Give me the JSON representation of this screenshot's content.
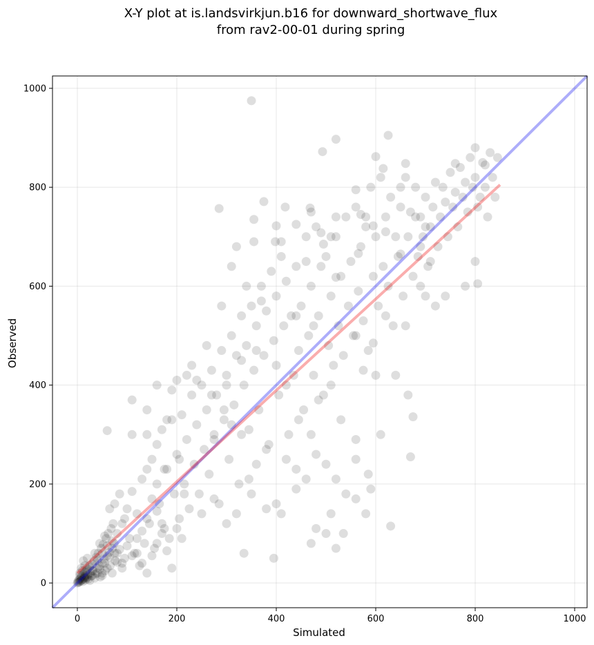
{
  "chart_data": {
    "type": "scatter",
    "title": "X-Y plot at is.landsvirkjun.b16 for downward_shortwave_flux",
    "subtitle": "from rav2-00-01 during spring",
    "xlabel": "Simulated",
    "ylabel": "Observed",
    "xlim": [
      -50,
      1025
    ],
    "ylim": [
      -50,
      1025
    ],
    "xticks": [
      0,
      200,
      400,
      600,
      800,
      1000
    ],
    "yticks": [
      0,
      200,
      400,
      600,
      800,
      1000
    ],
    "grid": true,
    "point_color": "#000000",
    "point_opacity": 0.13,
    "reference_line": {
      "color": "#0000ee",
      "opacity": 0.32,
      "from": [
        -50,
        -50
      ],
      "to": [
        1025,
        1025
      ]
    },
    "regression_line": {
      "color": "#ee0000",
      "opacity": 0.32,
      "from": [
        0,
        20
      ],
      "to": [
        850,
        805
      ]
    },
    "points": [
      [
        0,
        0
      ],
      [
        1,
        3
      ],
      [
        2,
        1
      ],
      [
        3,
        6
      ],
      [
        4,
        2
      ],
      [
        5,
        8
      ],
      [
        6,
        4
      ],
      [
        7,
        11
      ],
      [
        8,
        5
      ],
      [
        9,
        14
      ],
      [
        10,
        7
      ],
      [
        11,
        3
      ],
      [
        12,
        18
      ],
      [
        13,
        9
      ],
      [
        14,
        12
      ],
      [
        15,
        22
      ],
      [
        16,
        6
      ],
      [
        17,
        15
      ],
      [
        18,
        25
      ],
      [
        19,
        10
      ],
      [
        20,
        28
      ],
      [
        21,
        17
      ],
      [
        22,
        8
      ],
      [
        24,
        32
      ],
      [
        26,
        20
      ],
      [
        28,
        14
      ],
      [
        30,
        38
      ],
      [
        32,
        24
      ],
      [
        34,
        45
      ],
      [
        36,
        18
      ],
      [
        38,
        52
      ],
      [
        40,
        30
      ],
      [
        42,
        60
      ],
      [
        44,
        35
      ],
      [
        46,
        12
      ],
      [
        48,
        70
      ],
      [
        50,
        40
      ],
      [
        52,
        78
      ],
      [
        54,
        48
      ],
      [
        56,
        25
      ],
      [
        58,
        90
      ],
      [
        60,
        55
      ],
      [
        62,
        100
      ],
      [
        64,
        62
      ],
      [
        66,
        35
      ],
      [
        68,
        110
      ],
      [
        70,
        70
      ],
      [
        72,
        120
      ],
      [
        74,
        80
      ],
      [
        76,
        45
      ],
      [
        5,
        20
      ],
      [
        8,
        30
      ],
      [
        12,
        45
      ],
      [
        15,
        10
      ],
      [
        20,
        50
      ],
      [
        25,
        35
      ],
      [
        30,
        15
      ],
      [
        35,
        60
      ],
      [
        40,
        20
      ],
      [
        45,
        80
      ],
      [
        50,
        15
      ],
      [
        55,
        95
      ],
      [
        60,
        30
      ],
      [
        65,
        150
      ],
      [
        70,
        20
      ],
      [
        75,
        160
      ],
      [
        80,
        60
      ],
      [
        85,
        180
      ],
      [
        90,
        40
      ],
      [
        95,
        130
      ],
      [
        100,
        150
      ],
      [
        105,
        90
      ],
      [
        110,
        185
      ],
      [
        115,
        60
      ],
      [
        120,
        140
      ],
      [
        125,
        35
      ],
      [
        130,
        210
      ],
      [
        135,
        80
      ],
      [
        140,
        300
      ],
      [
        145,
        120
      ],
      [
        150,
        250
      ],
      [
        155,
        70
      ],
      [
        160,
        280
      ],
      [
        165,
        160
      ],
      [
        170,
        310
      ],
      [
        175,
        110
      ],
      [
        180,
        230
      ],
      [
        185,
        90
      ],
      [
        190,
        330
      ],
      [
        195,
        180
      ],
      [
        200,
        260
      ],
      [
        205,
        130
      ],
      [
        210,
        340
      ],
      [
        215,
        200
      ],
      [
        220,
        290
      ],
      [
        225,
        150
      ],
      [
        230,
        380
      ],
      [
        235,
        240
      ],
      [
        240,
        320
      ],
      [
        245,
        180
      ],
      [
        250,
        400
      ],
      [
        255,
        270
      ],
      [
        260,
        350
      ],
      [
        265,
        220
      ],
      [
        270,
        430
      ],
      [
        275,
        300
      ],
      [
        280,
        380
      ],
      [
        285,
        160
      ],
      [
        290,
        470
      ],
      [
        295,
        330
      ],
      [
        300,
        420
      ],
      [
        305,
        250
      ],
      [
        310,
        500
      ],
      [
        315,
        360
      ],
      [
        320,
        460
      ],
      [
        325,
        200
      ],
      [
        330,
        540
      ],
      [
        335,
        400
      ],
      [
        340,
        480
      ],
      [
        345,
        310
      ],
      [
        350,
        560
      ],
      [
        355,
        430
      ],
      [
        360,
        520
      ],
      [
        365,
        350
      ],
      [
        370,
        600
      ],
      [
        375,
        460
      ],
      [
        380,
        550
      ],
      [
        385,
        280
      ],
      [
        390,
        630
      ],
      [
        395,
        490
      ],
      [
        400,
        580
      ],
      [
        405,
        380
      ],
      [
        410,
        660
      ],
      [
        415,
        520
      ],
      [
        420,
        610
      ],
      [
        425,
        300
      ],
      [
        430,
        540
      ],
      [
        435,
        420
      ],
      [
        440,
        640
      ],
      [
        445,
        470
      ],
      [
        450,
        560
      ],
      [
        455,
        350
      ],
      [
        460,
        700
      ],
      [
        465,
        500
      ],
      [
        470,
        600
      ],
      [
        475,
        420
      ],
      [
        480,
        720
      ],
      [
        485,
        540
      ],
      [
        490,
        640
      ],
      [
        495,
        380
      ],
      [
        500,
        660
      ],
      [
        505,
        480
      ],
      [
        510,
        580
      ],
      [
        515,
        440
      ],
      [
        520,
        700
      ],
      [
        525,
        520
      ],
      [
        530,
        620
      ],
      [
        535,
        460
      ],
      [
        540,
        740
      ],
      [
        545,
        560
      ],
      [
        550,
        650
      ],
      [
        555,
        500
      ],
      [
        560,
        760
      ],
      [
        565,
        590
      ],
      [
        570,
        680
      ],
      [
        575,
        530
      ],
      [
        580,
        720
      ],
      [
        585,
        470
      ],
      [
        590,
        800
      ],
      [
        595,
        620
      ],
      [
        600,
        700
      ],
      [
        605,
        560
      ],
      [
        610,
        820
      ],
      [
        615,
        640
      ],
      [
        620,
        740
      ],
      [
        625,
        600
      ],
      [
        630,
        780
      ],
      [
        635,
        520
      ],
      [
        640,
        700
      ],
      [
        645,
        660
      ],
      [
        650,
        760
      ],
      [
        655,
        580
      ],
      [
        660,
        820
      ],
      [
        665,
        700
      ],
      [
        670,
        750
      ],
      [
        675,
        620
      ],
      [
        680,
        800
      ],
      [
        685,
        660
      ],
      [
        690,
        740
      ],
      [
        695,
        700
      ],
      [
        700,
        780
      ],
      [
        705,
        640
      ],
      [
        710,
        720
      ],
      [
        715,
        760
      ],
      [
        720,
        810
      ],
      [
        725,
        680
      ],
      [
        730,
        740
      ],
      [
        735,
        800
      ],
      [
        740,
        770
      ],
      [
        745,
        700
      ],
      [
        750,
        830
      ],
      [
        755,
        760
      ],
      [
        760,
        790
      ],
      [
        765,
        720
      ],
      [
        770,
        840
      ],
      [
        775,
        780
      ],
      [
        780,
        810
      ],
      [
        785,
        750
      ],
      [
        790,
        860
      ],
      [
        795,
        800
      ],
      [
        800,
        820
      ],
      [
        805,
        760
      ],
      [
        810,
        780
      ],
      [
        815,
        850
      ],
      [
        820,
        800
      ],
      [
        825,
        740
      ],
      [
        830,
        870
      ],
      [
        835,
        820
      ],
      [
        840,
        780
      ],
      [
        845,
        860
      ],
      [
        350,
        975
      ],
      [
        520,
        897
      ],
      [
        625,
        905
      ],
      [
        493,
        872
      ],
      [
        600,
        862
      ],
      [
        800,
        880
      ],
      [
        615,
        838
      ],
      [
        660,
        848
      ],
      [
        760,
        848
      ],
      [
        820,
        845
      ],
      [
        285,
        757
      ],
      [
        375,
        771
      ],
      [
        418,
        760
      ],
      [
        468,
        758
      ],
      [
        470,
        750
      ],
      [
        520,
        740
      ],
      [
        560,
        795
      ],
      [
        580,
        740
      ],
      [
        650,
        800
      ],
      [
        700,
        720
      ],
      [
        310,
        640
      ],
      [
        355,
        735
      ],
      [
        400,
        722
      ],
      [
        440,
        725
      ],
      [
        490,
        708
      ],
      [
        510,
        700
      ],
      [
        565,
        666
      ],
      [
        620,
        710
      ],
      [
        680,
        740
      ],
      [
        710,
        650
      ],
      [
        320,
        680
      ],
      [
        355,
        690
      ],
      [
        398,
        690
      ],
      [
        460,
        650
      ],
      [
        495,
        685
      ],
      [
        520,
        618
      ],
      [
        570,
        745
      ],
      [
        595,
        722
      ],
      [
        650,
        665
      ],
      [
        690,
        680
      ],
      [
        180,
        330
      ],
      [
        200,
        410
      ],
      [
        230,
        440
      ],
      [
        260,
        480
      ],
      [
        290,
        560
      ],
      [
        340,
        600
      ],
      [
        370,
        570
      ],
      [
        410,
        690
      ],
      [
        440,
        540
      ],
      [
        475,
        520
      ],
      [
        110,
        300
      ],
      [
        140,
        350
      ],
      [
        160,
        400
      ],
      [
        190,
        390
      ],
      [
        220,
        420
      ],
      [
        240,
        410
      ],
      [
        270,
        380
      ],
      [
        300,
        400
      ],
      [
        330,
        450
      ],
      [
        360,
        470
      ],
      [
        110,
        370
      ],
      [
        60,
        308
      ],
      [
        140,
        230
      ],
      [
        160,
        200
      ],
      [
        175,
        230
      ],
      [
        205,
        250
      ],
      [
        215,
        180
      ],
      [
        250,
        140
      ],
      [
        275,
        170
      ],
      [
        300,
        120
      ],
      [
        320,
        140
      ],
      [
        335,
        60
      ],
      [
        350,
        180
      ],
      [
        380,
        150
      ],
      [
        395,
        50
      ],
      [
        400,
        160
      ],
      [
        410,
        140
      ],
      [
        440,
        190
      ],
      [
        470,
        80
      ],
      [
        480,
        110
      ],
      [
        500,
        100
      ],
      [
        510,
        140
      ],
      [
        520,
        70
      ],
      [
        535,
        100
      ],
      [
        560,
        170
      ],
      [
        580,
        140
      ],
      [
        590,
        190
      ],
      [
        610,
        300
      ],
      [
        630,
        115
      ],
      [
        670,
        255
      ],
      [
        485,
        370
      ],
      [
        510,
        400
      ],
      [
        530,
        330
      ],
      [
        560,
        290
      ],
      [
        600,
        420
      ],
      [
        640,
        420
      ],
      [
        665,
        380
      ],
      [
        675,
        336
      ],
      [
        690,
        600
      ],
      [
        720,
        560
      ],
      [
        560,
        500
      ],
      [
        575,
        430
      ],
      [
        595,
        485
      ],
      [
        620,
        540
      ],
      [
        660,
        520
      ],
      [
        700,
        580
      ],
      [
        740,
        580
      ],
      [
        780,
        600
      ],
      [
        800,
        650
      ],
      [
        805,
        605
      ],
      [
        400,
        440
      ],
      [
        420,
        400
      ],
      [
        445,
        330
      ],
      [
        470,
        300
      ],
      [
        480,
        260
      ],
      [
        500,
        240
      ],
      [
        520,
        210
      ],
      [
        540,
        180
      ],
      [
        560,
        250
      ],
      [
        585,
        220
      ],
      [
        420,
        250
      ],
      [
        440,
        230
      ],
      [
        460,
        210
      ],
      [
        380,
        270
      ],
      [
        360,
        240
      ],
      [
        345,
        210
      ],
      [
        330,
        300
      ],
      [
        310,
        320
      ],
      [
        295,
        350
      ],
      [
        275,
        290
      ],
      [
        120,
        60
      ],
      [
        130,
        40
      ],
      [
        140,
        20
      ],
      [
        150,
        55
      ],
      [
        160,
        80
      ],
      [
        170,
        100
      ],
      [
        180,
        65
      ],
      [
        190,
        30
      ],
      [
        200,
        110
      ],
      [
        210,
        90
      ],
      [
        80,
        100
      ],
      [
        90,
        120
      ],
      [
        100,
        75
      ],
      [
        110,
        55
      ],
      [
        120,
        90
      ],
      [
        130,
        105
      ],
      [
        140,
        130
      ],
      [
        150,
        170
      ],
      [
        160,
        145
      ],
      [
        170,
        120
      ],
      [
        50,
        60
      ],
      [
        55,
        40
      ],
      [
        60,
        75
      ],
      [
        65,
        52
      ],
      [
        70,
        85
      ],
      [
        75,
        60
      ],
      [
        80,
        42
      ],
      [
        85,
        68
      ],
      [
        90,
        30
      ],
      [
        95,
        50
      ],
      [
        25,
        5
      ],
      [
        30,
        25
      ],
      [
        35,
        10
      ],
      [
        40,
        45
      ],
      [
        45,
        28
      ],
      [
        50,
        20
      ],
      [
        15,
        35
      ],
      [
        20,
        12
      ],
      [
        10,
        25
      ],
      [
        5,
        15
      ]
    ]
  }
}
